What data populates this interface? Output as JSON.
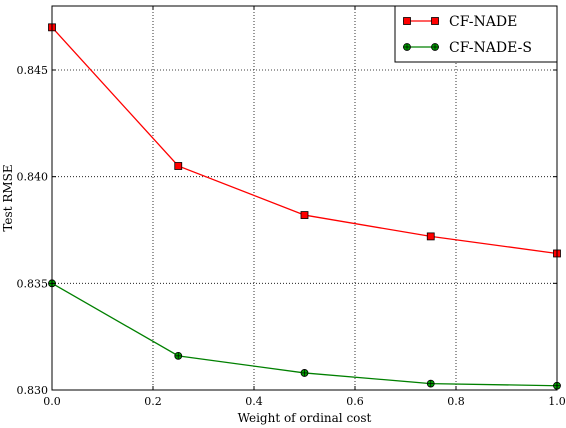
{
  "chart_data": {
    "type": "line",
    "xlabel": "Weight of ordinal cost",
    "ylabel": "Test RMSE",
    "xlim": [
      0.0,
      1.0
    ],
    "ylim": [
      0.83,
      0.848
    ],
    "xticks": [
      "0.0",
      "0.2",
      "0.4",
      "0.6",
      "0.8",
      "1.0"
    ],
    "xtick_values": [
      0.0,
      0.2,
      0.4,
      0.6,
      0.8,
      1.0
    ],
    "yticks": [
      "0.830",
      "0.835",
      "0.840",
      "0.845"
    ],
    "ytick_values": [
      0.83,
      0.835,
      0.84,
      0.845
    ],
    "grid": true,
    "legend_position": "top-right",
    "x": [
      0.0,
      0.25,
      0.5,
      0.75,
      1.0
    ],
    "series": [
      {
        "name": "CF-NADE",
        "values": [
          0.847,
          0.8405,
          0.8382,
          0.8372,
          0.8364
        ],
        "color": "#ff0000",
        "marker": "square",
        "marker_fill": "#ff0000"
      },
      {
        "name": "CF-NADE-S",
        "values": [
          0.835,
          0.8316,
          0.8308,
          0.8303,
          0.8302
        ],
        "color": "#008000",
        "marker": "circle-plus",
        "marker_fill": "#00a000"
      }
    ]
  }
}
